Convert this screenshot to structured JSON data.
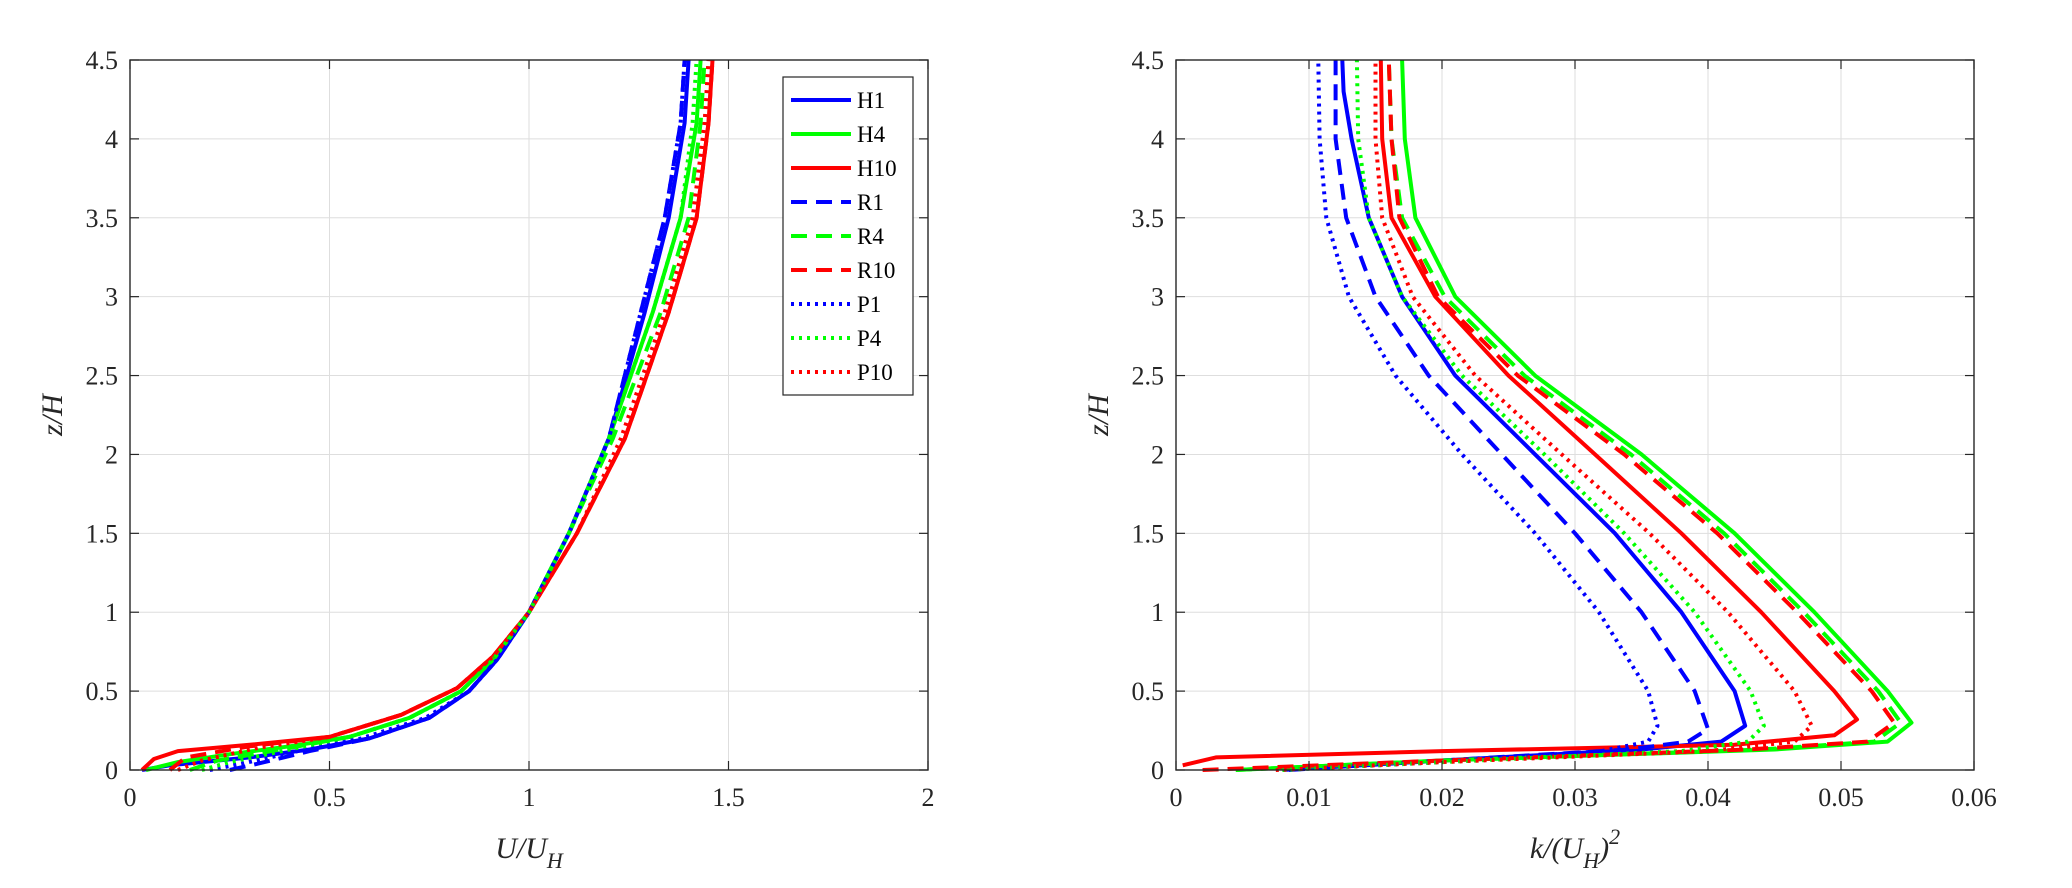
{
  "chart_data": [
    {
      "type": "line",
      "xlabel": "U/U_H",
      "xlabel_main": "U/U",
      "xlabel_sub": "H",
      "ylabel": "z/H",
      "xlim": [
        0,
        2
      ],
      "ylim": [
        0,
        4.5
      ],
      "xticks": [
        0,
        0.5,
        1,
        1.5,
        2
      ],
      "xtick_labels": [
        "0",
        "0.5",
        "1",
        "1.5",
        "2"
      ],
      "yticks": [
        0,
        0.5,
        1,
        1.5,
        2,
        2.5,
        3,
        3.5,
        4,
        4.5
      ],
      "ytick_labels": [
        "0",
        "0.5",
        "1",
        "1.5",
        "2",
        "2.5",
        "3",
        "3.5",
        "4",
        "4.5"
      ],
      "grid": true,
      "legend_position": "top-right",
      "series": [
        {
          "name": "H1",
          "color": "#0000FF",
          "style": "solid",
          "x": [
            0.03,
            0.1,
            0.3,
            0.45,
            0.6,
            0.75,
            0.85,
            0.92,
            1.0,
            1.1,
            1.2,
            1.29,
            1.35,
            1.39,
            1.4
          ],
          "y": [
            0,
            0.03,
            0.08,
            0.13,
            0.2,
            0.33,
            0.5,
            0.7,
            1.0,
            1.5,
            2.1,
            2.9,
            3.5,
            4.1,
            4.5
          ]
        },
        {
          "name": "H4",
          "color": "#00FF00",
          "style": "solid",
          "x": [
            0.04,
            0.12,
            0.25,
            0.4,
            0.55,
            0.7,
            0.83,
            0.91,
            1.0,
            1.1,
            1.2,
            1.31,
            1.38,
            1.42,
            1.43
          ],
          "y": [
            0,
            0.05,
            0.1,
            0.15,
            0.21,
            0.33,
            0.5,
            0.7,
            1.0,
            1.5,
            2.1,
            2.9,
            3.5,
            4.1,
            4.5
          ]
        },
        {
          "name": "H10",
          "color": "#FF0000",
          "style": "solid",
          "x": [
            0.03,
            0.06,
            0.12,
            0.3,
            0.5,
            0.68,
            0.82,
            0.91,
            1.0,
            1.12,
            1.24,
            1.35,
            1.42,
            1.45,
            1.46
          ],
          "y": [
            0,
            0.07,
            0.12,
            0.16,
            0.21,
            0.35,
            0.52,
            0.72,
            1.0,
            1.5,
            2.1,
            2.9,
            3.5,
            4.1,
            4.5
          ]
        },
        {
          "name": "R1",
          "color": "#0000FF",
          "style": "dashed",
          "x": [
            0.25,
            0.32,
            0.45,
            0.6,
            0.75,
            0.85,
            0.92,
            1.0,
            1.1,
            1.2,
            1.28,
            1.34,
            1.38,
            1.39
          ],
          "y": [
            0,
            0.04,
            0.12,
            0.2,
            0.33,
            0.5,
            0.7,
            1.0,
            1.5,
            2.1,
            2.9,
            3.5,
            4.1,
            4.5
          ]
        },
        {
          "name": "R4",
          "color": "#00FF00",
          "style": "dashed",
          "x": [
            0.15,
            0.22,
            0.4,
            0.55,
            0.7,
            0.83,
            0.91,
            1.0,
            1.1,
            1.21,
            1.33,
            1.4,
            1.43,
            1.44
          ],
          "y": [
            0,
            0.06,
            0.14,
            0.21,
            0.33,
            0.5,
            0.7,
            1.0,
            1.5,
            2.1,
            2.9,
            3.5,
            4.1,
            4.5
          ]
        },
        {
          "name": "R10",
          "color": "#FF0000",
          "style": "dashed",
          "x": [
            0.1,
            0.14,
            0.3,
            0.5,
            0.68,
            0.82,
            0.91,
            1.0,
            1.12,
            1.24,
            1.35,
            1.42,
            1.45,
            1.46
          ],
          "y": [
            0,
            0.08,
            0.15,
            0.21,
            0.35,
            0.52,
            0.72,
            1.0,
            1.5,
            2.1,
            2.9,
            3.5,
            4.1,
            4.5
          ]
        },
        {
          "name": "P1",
          "color": "#0000FF",
          "style": "dotted",
          "x": [
            0.2,
            0.28,
            0.42,
            0.58,
            0.74,
            0.85,
            0.92,
            1.0,
            1.1,
            1.2,
            1.28,
            1.34,
            1.38,
            1.39
          ],
          "y": [
            0,
            0.04,
            0.12,
            0.2,
            0.33,
            0.5,
            0.7,
            1.0,
            1.5,
            2.1,
            2.9,
            3.5,
            4.1,
            4.5
          ]
        },
        {
          "name": "P4",
          "color": "#00FF00",
          "style": "dotted",
          "x": [
            0.18,
            0.25,
            0.4,
            0.55,
            0.7,
            0.83,
            0.91,
            1.0,
            1.1,
            1.2,
            1.31,
            1.38,
            1.41,
            1.42
          ],
          "y": [
            0,
            0.05,
            0.13,
            0.21,
            0.33,
            0.5,
            0.7,
            1.0,
            1.5,
            2.1,
            2.9,
            3.5,
            4.1,
            4.5
          ]
        },
        {
          "name": "P10",
          "color": "#FF0000",
          "style": "dotted",
          "x": [
            0.12,
            0.18,
            0.32,
            0.5,
            0.68,
            0.82,
            0.91,
            1.0,
            1.12,
            1.23,
            1.34,
            1.41,
            1.44,
            1.45
          ],
          "y": [
            0,
            0.06,
            0.14,
            0.21,
            0.35,
            0.52,
            0.72,
            1.0,
            1.5,
            2.1,
            2.9,
            3.5,
            4.1,
            4.5
          ]
        }
      ]
    },
    {
      "type": "line",
      "xlabel": "k/(U_H)^2",
      "xlabel_main": "k/(U",
      "xlabel_sub": "H",
      "xlabel_close": ")",
      "xlabel_sup": "2",
      "ylabel": "z/H",
      "xlim": [
        0,
        0.06
      ],
      "ylim": [
        0,
        4.5
      ],
      "xticks": [
        0,
        0.01,
        0.02,
        0.03,
        0.04,
        0.05,
        0.06
      ],
      "xtick_labels": [
        "0",
        "0.01",
        "0.02",
        "0.03",
        "0.04",
        "0.05",
        "0.06"
      ],
      "yticks": [
        0,
        0.5,
        1,
        1.5,
        2,
        2.5,
        3,
        3.5,
        4,
        4.5
      ],
      "ytick_labels": [
        "0",
        "0.5",
        "1",
        "1.5",
        "2",
        "2.5",
        "3",
        "3.5",
        "4",
        "4.5"
      ],
      "grid": true,
      "series": [
        {
          "name": "H1",
          "color": "#0000FF",
          "style": "solid",
          "x": [
            0.008,
            0.02,
            0.035,
            0.041,
            0.0428,
            0.042,
            0.038,
            0.033,
            0.027,
            0.021,
            0.017,
            0.0145,
            0.0132,
            0.0126,
            0.0125
          ],
          "y": [
            0,
            0.06,
            0.13,
            0.18,
            0.28,
            0.5,
            1.0,
            1.5,
            2.0,
            2.5,
            3.0,
            3.5,
            4.0,
            4.3,
            4.5
          ]
        },
        {
          "name": "H4",
          "color": "#00FF00",
          "style": "solid",
          "x": [
            0.0045,
            0.02,
            0.045,
            0.0535,
            0.0553,
            0.0535,
            0.048,
            0.042,
            0.035,
            0.027,
            0.021,
            0.018,
            0.0172,
            0.017
          ],
          "y": [
            0,
            0.06,
            0.13,
            0.18,
            0.3,
            0.5,
            1.0,
            1.5,
            2.0,
            2.5,
            3.0,
            3.5,
            4.0,
            4.5
          ]
        },
        {
          "name": "H10",
          "color": "#FF0000",
          "style": "solid",
          "x": [
            0.0005,
            0.003,
            0.02,
            0.042,
            0.0495,
            0.0512,
            0.0495,
            0.044,
            0.038,
            0.0315,
            0.025,
            0.0195,
            0.0162,
            0.0155,
            0.0154
          ],
          "y": [
            0.03,
            0.08,
            0.12,
            0.16,
            0.22,
            0.32,
            0.5,
            1.0,
            1.5,
            2.0,
            2.5,
            3.0,
            3.5,
            4.0,
            4.5
          ]
        },
        {
          "name": "R1",
          "color": "#0000FF",
          "style": "dashed",
          "x": [
            0.0085,
            0.02,
            0.034,
            0.0385,
            0.04,
            0.039,
            0.035,
            0.03,
            0.0245,
            0.019,
            0.015,
            0.0128,
            0.012,
            0.012
          ],
          "y": [
            0,
            0.06,
            0.13,
            0.18,
            0.26,
            0.5,
            1.0,
            1.5,
            2.0,
            2.5,
            3.0,
            3.5,
            4.0,
            4.5
          ]
        },
        {
          "name": "R4",
          "color": "#00FF00",
          "style": "dashed",
          "x": [
            0.0045,
            0.02,
            0.044,
            0.0525,
            0.0545,
            0.0528,
            0.0472,
            0.0412,
            0.0342,
            0.0262,
            0.0202,
            0.017,
            0.0162,
            0.016
          ],
          "y": [
            0,
            0.06,
            0.13,
            0.18,
            0.3,
            0.5,
            1.0,
            1.5,
            2.0,
            2.5,
            3.0,
            3.5,
            4.0,
            4.5
          ]
        },
        {
          "name": "R10",
          "color": "#FF0000",
          "style": "dashed",
          "x": [
            0.002,
            0.02,
            0.043,
            0.052,
            0.054,
            0.0523,
            0.0467,
            0.0407,
            0.0337,
            0.0257,
            0.0197,
            0.0168,
            0.0162,
            0.016
          ],
          "y": [
            0,
            0.06,
            0.13,
            0.18,
            0.3,
            0.5,
            1.0,
            1.5,
            2.0,
            2.5,
            3.0,
            3.5,
            4.0,
            4.5
          ]
        },
        {
          "name": "P1",
          "color": "#0000FF",
          "style": "dotted",
          "x": [
            0.008,
            0.02,
            0.032,
            0.0355,
            0.0362,
            0.0355,
            0.0318,
            0.027,
            0.0215,
            0.0165,
            0.013,
            0.0113,
            0.0108,
            0.0107
          ],
          "y": [
            0,
            0.05,
            0.12,
            0.18,
            0.28,
            0.5,
            1.0,
            1.5,
            2.0,
            2.5,
            3.0,
            3.5,
            4.0,
            4.5
          ]
        },
        {
          "name": "P4",
          "color": "#00FF00",
          "style": "dotted",
          "x": [
            0.008,
            0.02,
            0.038,
            0.043,
            0.0442,
            0.0432,
            0.039,
            0.0337,
            0.0277,
            0.0215,
            0.017,
            0.0145,
            0.0137,
            0.0136
          ],
          "y": [
            0,
            0.05,
            0.12,
            0.18,
            0.28,
            0.5,
            1.0,
            1.5,
            2.0,
            2.5,
            3.0,
            3.5,
            4.0,
            4.5
          ]
        },
        {
          "name": "P10",
          "color": "#FF0000",
          "style": "dotted",
          "x": [
            0.0075,
            0.02,
            0.04,
            0.0465,
            0.0478,
            0.0465,
            0.0415,
            0.0356,
            0.029,
            0.0225,
            0.0178,
            0.0155,
            0.015,
            0.015
          ],
          "y": [
            0,
            0.05,
            0.12,
            0.18,
            0.28,
            0.5,
            1.0,
            1.5,
            2.0,
            2.5,
            3.0,
            3.5,
            4.0,
            4.5
          ]
        }
      ]
    }
  ]
}
